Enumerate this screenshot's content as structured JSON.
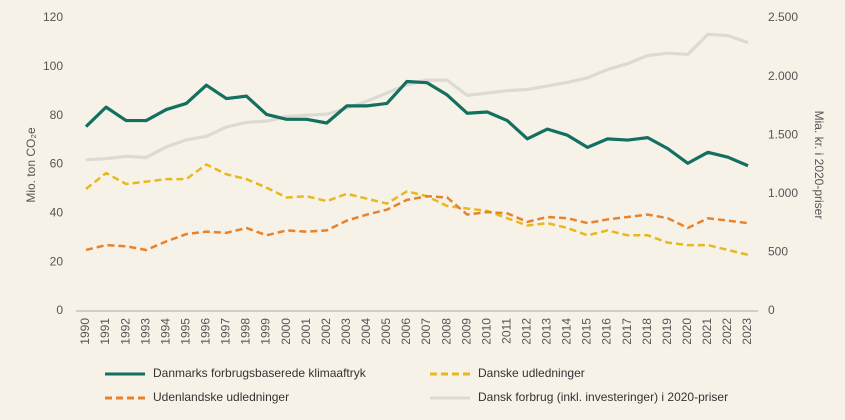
{
  "chart_data": {
    "type": "line",
    "y_label": "Mio. ton CO₂e",
    "y2_label": "Mia. kr. i 2020-priser",
    "categories": [
      "1990",
      "1991",
      "1992",
      "1993",
      "1994",
      "1995",
      "1996",
      "1997",
      "1998",
      "1999",
      "2000",
      "2001",
      "2002",
      "2003",
      "2004",
      "2005",
      "2006",
      "2007",
      "2008",
      "2009",
      "2010",
      "2011",
      "2012",
      "2013",
      "2014",
      "2015",
      "2016",
      "2017",
      "2018",
      "2019",
      "2020",
      "2021",
      "2022",
      "2023"
    ],
    "ylim": [
      0,
      120
    ],
    "yticks": [
      0,
      20,
      40,
      60,
      80,
      100,
      120
    ],
    "y2lim": [
      0,
      2500
    ],
    "y2ticks": [
      0,
      500,
      {
        "value": 1000,
        "label": "1.000"
      },
      {
        "value": 1500,
        "label": "1.500"
      },
      {
        "value": 2000,
        "label": "2.000"
      },
      {
        "value": 2500,
        "label": "2.500"
      }
    ],
    "grid": false,
    "legend": "bottom",
    "series": [
      {
        "name": "Danmarks forbrugsbaserede klimaaftryk",
        "color": "#136f60",
        "style": "solid",
        "values": [
          75.5,
          83.5,
          78,
          78,
          82.5,
          85,
          92.5,
          87,
          88,
          80.5,
          78.5,
          78.5,
          77,
          84,
          84,
          85,
          94,
          93.5,
          88.5,
          81,
          81.5,
          78,
          70.5,
          74.5,
          72,
          67,
          70.5,
          70,
          71,
          66.5,
          60.5,
          65,
          63,
          59.5
        ]
      },
      {
        "name": "Danske udledninger",
        "color": "#e8b820",
        "style": "dashed",
        "values": [
          50,
          56.5,
          52,
          53,
          54,
          54,
          60,
          56,
          54,
          50.5,
          46.5,
          47,
          45,
          48,
          46,
          44,
          49,
          47,
          43,
          42,
          41,
          38,
          35,
          36,
          34,
          31,
          33,
          31,
          31,
          28,
          27,
          27,
          25,
          23
        ]
      },
      {
        "name": "Udenlandske udledninger",
        "color": "#e8822c",
        "style": "dashed",
        "values": [
          25,
          27,
          26.5,
          25,
          28.5,
          31.5,
          32.5,
          32,
          34,
          31,
          33,
          32.5,
          33,
          37,
          39.5,
          41.5,
          45.5,
          47,
          46.5,
          39.5,
          40.5,
          40,
          36.5,
          38.5,
          38,
          36,
          37.5,
          38.5,
          39.5,
          38,
          34,
          38,
          37,
          36
        ]
      },
      {
        "name": "Dansk forbrug (inkl. investeringer) i 2020-priser",
        "color": "#dcdad4",
        "style": "solid",
        "axis": "y2",
        "values": [
          1290,
          1300,
          1320,
          1310,
          1400,
          1460,
          1490,
          1570,
          1610,
          1620,
          1660,
          1670,
          1680,
          1730,
          1790,
          1860,
          1930,
          1970,
          1970,
          1840,
          1860,
          1880,
          1890,
          1920,
          1950,
          1990,
          2060,
          2110,
          2180,
          2200,
          2190,
          2360,
          2350,
          2290
        ]
      }
    ]
  }
}
